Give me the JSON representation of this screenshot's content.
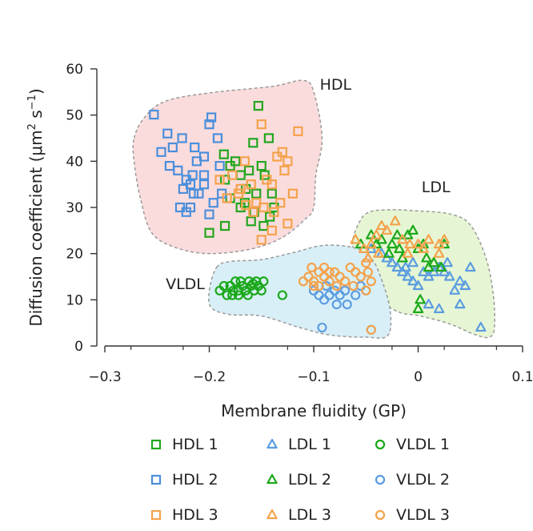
{
  "chart_data": {
    "type": "scatter",
    "xlabel": "Membrane fluidity (GP)",
    "ylabel_main": "Diffusion coefficient (μm",
    "ylabel_sup1": "2",
    "ylabel_mid": " s",
    "ylabel_sup2": "−1",
    "ylabel_end": ")",
    "xlim": [
      -0.3,
      0.1
    ],
    "ylim": [
      0,
      60
    ],
    "xticks": [
      -0.3,
      -0.2,
      -0.1,
      0,
      0.1
    ],
    "xtick_labels": [
      "−0.3",
      "−0.2",
      "−0.1",
      "0",
      "0.1"
    ],
    "yticks": [
      0,
      10,
      20,
      30,
      40,
      50,
      60
    ],
    "ytick_labels": [
      "0",
      "10",
      "20",
      "30",
      "40",
      "50",
      "60"
    ],
    "regions": [
      {
        "name": "HDL",
        "color": "#fbdcdc",
        "polygon": [
          [
            -0.272,
            45
          ],
          [
            -0.262,
            49.5
          ],
          [
            -0.242,
            53
          ],
          [
            -0.2,
            54.8
          ],
          [
            -0.14,
            56.2
          ],
          [
            -0.11,
            57.5
          ],
          [
            -0.1,
            55
          ],
          [
            -0.092,
            45
          ],
          [
            -0.098,
            37
          ],
          [
            -0.1,
            30
          ],
          [
            -0.108,
            27.5
          ],
          [
            -0.13,
            23.5
          ],
          [
            -0.16,
            21
          ],
          [
            -0.2,
            20
          ],
          [
            -0.232,
            21.3
          ],
          [
            -0.255,
            24.5
          ],
          [
            -0.266,
            32
          ],
          [
            -0.272,
            40
          ]
        ],
        "label_x": -0.079,
        "label_y": 55.5
      },
      {
        "name": "LDL",
        "color": "#e6f6d4",
        "polygon": [
          [
            -0.063,
            22
          ],
          [
            -0.057,
            26.5
          ],
          [
            -0.047,
            29
          ],
          [
            -0.025,
            29.5
          ],
          [
            -0.005,
            29.3
          ],
          [
            0.03,
            28.6
          ],
          [
            0.05,
            26.2
          ],
          [
            0.065,
            19
          ],
          [
            0.072,
            11
          ],
          [
            0.073,
            4
          ],
          [
            0.068,
            1.9
          ],
          [
            0.054,
            2.5
          ],
          [
            0.03,
            4.8
          ],
          [
            0.002,
            6.5
          ],
          [
            -0.018,
            7.3
          ],
          [
            -0.036,
            9.8
          ],
          [
            -0.048,
            13.5
          ],
          [
            -0.058,
            17
          ]
        ],
        "label_x": 0.017,
        "label_y": 33.3
      },
      {
        "name": "VLDL",
        "color": "#d8eff8",
        "polygon": [
          [
            -0.193,
            17
          ],
          [
            -0.18,
            18.3
          ],
          [
            -0.15,
            18.7
          ],
          [
            -0.12,
            20.2
          ],
          [
            -0.09,
            21.8
          ],
          [
            -0.06,
            21.2
          ],
          [
            -0.045,
            19
          ],
          [
            -0.036,
            15
          ],
          [
            -0.027,
            8
          ],
          [
            -0.029,
            2.3
          ],
          [
            -0.05,
            1.9
          ],
          [
            -0.085,
            2.4
          ],
          [
            -0.115,
            4.1
          ],
          [
            -0.15,
            6.5
          ],
          [
            -0.18,
            6.8
          ],
          [
            -0.198,
            8.3
          ],
          [
            -0.2,
            12
          ]
        ],
        "label_x": -0.223,
        "label_y": 12.3
      }
    ],
    "series": [
      {
        "name": "HDL 1",
        "marker": "square",
        "color": "#22a61f",
        "points": [
          [
            -0.2,
            24.5
          ],
          [
            -0.185,
            26
          ],
          [
            -0.17,
            30
          ],
          [
            -0.165,
            34
          ],
          [
            -0.162,
            38
          ],
          [
            -0.158,
            44
          ],
          [
            -0.153,
            52
          ],
          [
            -0.15,
            39
          ],
          [
            -0.147,
            37
          ],
          [
            -0.143,
            45
          ],
          [
            -0.14,
            33
          ],
          [
            -0.138,
            30
          ],
          [
            -0.142,
            28
          ],
          [
            -0.16,
            27
          ],
          [
            -0.17,
            37
          ],
          [
            -0.175,
            40
          ],
          [
            -0.18,
            39
          ],
          [
            -0.186,
            41.5
          ],
          [
            -0.185,
            36
          ],
          [
            -0.18,
            32
          ],
          [
            -0.155,
            33
          ],
          [
            -0.148,
            26
          ],
          [
            -0.157,
            29
          ],
          [
            -0.166,
            31
          ]
        ]
      },
      {
        "name": "HDL 2",
        "marker": "square",
        "color": "#4a8fdc",
        "points": [
          [
            -0.253,
            50.1
          ],
          [
            -0.24,
            46
          ],
          [
            -0.235,
            43
          ],
          [
            -0.23,
            38
          ],
          [
            -0.222,
            36
          ],
          [
            -0.218,
            35
          ],
          [
            -0.215,
            33
          ],
          [
            -0.212,
            40
          ],
          [
            -0.205,
            41
          ],
          [
            -0.2,
            48
          ],
          [
            -0.198,
            49.5
          ],
          [
            -0.192,
            45
          ],
          [
            -0.19,
            39
          ],
          [
            -0.188,
            33
          ],
          [
            -0.196,
            31
          ],
          [
            -0.205,
            37
          ],
          [
            -0.225,
            34
          ],
          [
            -0.228,
            30
          ],
          [
            -0.222,
            29
          ],
          [
            -0.218,
            30
          ],
          [
            -0.21,
            33
          ],
          [
            -0.238,
            39
          ],
          [
            -0.246,
            42
          ],
          [
            -0.226,
            45
          ],
          [
            -0.214,
            43
          ],
          [
            -0.2,
            28.5
          ],
          [
            -0.216,
            37
          ],
          [
            -0.205,
            35
          ]
        ]
      },
      {
        "name": "HDL 3",
        "marker": "square",
        "color": "#f4a24c",
        "points": [
          [
            -0.178,
            37
          ],
          [
            -0.17,
            34
          ],
          [
            -0.166,
            40
          ],
          [
            -0.16,
            35
          ],
          [
            -0.155,
            31
          ],
          [
            -0.15,
            48
          ],
          [
            -0.145,
            36
          ],
          [
            -0.14,
            35
          ],
          [
            -0.135,
            41
          ],
          [
            -0.13,
            42
          ],
          [
            -0.128,
            38
          ],
          [
            -0.125,
            40
          ],
          [
            -0.115,
            46.5
          ],
          [
            -0.12,
            33
          ],
          [
            -0.132,
            31
          ],
          [
            -0.138,
            29
          ],
          [
            -0.148,
            30
          ],
          [
            -0.158,
            29
          ],
          [
            -0.165,
            30.5
          ],
          [
            -0.172,
            33
          ],
          [
            -0.183,
            32
          ],
          [
            -0.19,
            36
          ],
          [
            -0.15,
            23
          ],
          [
            -0.14,
            25
          ],
          [
            -0.125,
            26.5
          ]
        ]
      },
      {
        "name": "LDL 1",
        "marker": "triangle",
        "color": "#5b9ce0",
        "points": [
          [
            -0.045,
            21
          ],
          [
            -0.035,
            20
          ],
          [
            -0.025,
            18
          ],
          [
            -0.02,
            17
          ],
          [
            -0.015,
            16
          ],
          [
            -0.01,
            15
          ],
          [
            -0.005,
            14
          ],
          [
            0,
            13
          ],
          [
            0.005,
            16
          ],
          [
            0.01,
            15
          ],
          [
            0.015,
            16
          ],
          [
            0.02,
            17
          ],
          [
            0.025,
            16
          ],
          [
            0.03,
            15
          ],
          [
            0.04,
            14
          ],
          [
            0.05,
            17
          ],
          [
            0.045,
            13
          ],
          [
            0.035,
            12
          ],
          [
            0.06,
            4
          ],
          [
            0.04,
            9
          ],
          [
            0.02,
            8
          ],
          [
            0.01,
            9
          ],
          [
            -0.005,
            18
          ],
          [
            -0.03,
            19
          ],
          [
            -0.012,
            17
          ],
          [
            0.028,
            18
          ]
        ]
      },
      {
        "name": "LDL 2",
        "marker": "triangle",
        "color": "#1aa81a",
        "points": [
          [
            -0.055,
            22
          ],
          [
            -0.045,
            24
          ],
          [
            -0.035,
            23
          ],
          [
            -0.025,
            22
          ],
          [
            -0.018,
            21
          ],
          [
            -0.01,
            24
          ],
          [
            -0.005,
            25
          ],
          [
            0,
            21
          ],
          [
            0.008,
            19
          ],
          [
            0.015,
            18
          ],
          [
            0.022,
            17
          ],
          [
            -0.028,
            20
          ],
          [
            -0.015,
            19
          ],
          [
            -0.04,
            22
          ],
          [
            0.005,
            22
          ],
          [
            0.025,
            22
          ],
          [
            0.01,
            17
          ],
          [
            0,
            8
          ],
          [
            0.002,
            10
          ],
          [
            -0.02,
            24
          ]
        ]
      },
      {
        "name": "LDL 3",
        "marker": "triangle",
        "color": "#f4a24c",
        "points": [
          [
            -0.06,
            23
          ],
          [
            -0.052,
            21
          ],
          [
            -0.045,
            22
          ],
          [
            -0.04,
            24
          ],
          [
            -0.035,
            26
          ],
          [
            -0.03,
            25
          ],
          [
            -0.022,
            27
          ],
          [
            -0.015,
            23
          ],
          [
            -0.008,
            22
          ],
          [
            0,
            22
          ],
          [
            0.01,
            23
          ],
          [
            0.02,
            22
          ],
          [
            0.025,
            23
          ],
          [
            0.02,
            20
          ],
          [
            -0.048,
            19
          ],
          [
            -0.038,
            20
          ],
          [
            -0.01,
            20
          ],
          [
            0.005,
            21
          ]
        ]
      },
      {
        "name": "VLDL 1",
        "marker": "circle",
        "color": "#1aa81a",
        "points": [
          [
            -0.19,
            12
          ],
          [
            -0.186,
            13
          ],
          [
            -0.183,
            11
          ],
          [
            -0.18,
            13
          ],
          [
            -0.177,
            12
          ],
          [
            -0.175,
            14
          ],
          [
            -0.172,
            12
          ],
          [
            -0.17,
            14
          ],
          [
            -0.168,
            13
          ],
          [
            -0.165,
            12
          ],
          [
            -0.162,
            14
          ],
          [
            -0.16,
            13
          ],
          [
            -0.157,
            12
          ],
          [
            -0.155,
            14
          ],
          [
            -0.153,
            13
          ],
          [
            -0.15,
            12
          ],
          [
            -0.148,
            14
          ],
          [
            -0.178,
            11
          ],
          [
            -0.172,
            11
          ],
          [
            -0.163,
            11
          ],
          [
            -0.158,
            13.5
          ],
          [
            -0.13,
            11
          ]
        ]
      },
      {
        "name": "VLDL 2",
        "marker": "circle",
        "color": "#5b9ce0",
        "points": [
          [
            -0.1,
            12
          ],
          [
            -0.095,
            11
          ],
          [
            -0.09,
            10
          ],
          [
            -0.085,
            11
          ],
          [
            -0.08,
            12
          ],
          [
            -0.075,
            11
          ],
          [
            -0.07,
            12
          ],
          [
            -0.068,
            9
          ],
          [
            -0.06,
            11
          ],
          [
            -0.055,
            13
          ],
          [
            -0.05,
            12
          ],
          [
            -0.092,
            4
          ],
          [
            -0.045,
            3.5
          ],
          [
            -0.078,
            9
          ],
          [
            -0.088,
            13
          ]
        ]
      },
      {
        "name": "VLDL 3",
        "marker": "circle",
        "color": "#f4a24c",
        "points": [
          [
            -0.11,
            14
          ],
          [
            -0.105,
            15
          ],
          [
            -0.1,
            14
          ],
          [
            -0.095,
            16
          ],
          [
            -0.09,
            15
          ],
          [
            -0.085,
            14
          ],
          [
            -0.08,
            16
          ],
          [
            -0.075,
            15
          ],
          [
            -0.07,
            14
          ],
          [
            -0.065,
            17
          ],
          [
            -0.06,
            16
          ],
          [
            -0.055,
            15
          ],
          [
            -0.05,
            18
          ],
          [
            -0.048,
            16
          ],
          [
            -0.05,
            12
          ],
          [
            -0.045,
            14
          ],
          [
            -0.09,
            17
          ],
          [
            -0.1,
            13
          ],
          [
            -0.085,
            16
          ],
          [
            -0.078,
            13
          ],
          [
            -0.102,
            17
          ],
          [
            -0.062,
            13
          ],
          [
            -0.045,
            3.5
          ],
          [
            -0.095,
            13
          ]
        ]
      }
    ],
    "legend": [
      {
        "label": "HDL 1",
        "marker": "square",
        "color": "#22a61f"
      },
      {
        "label": "LDL 1",
        "marker": "triangle",
        "color": "#5b9ce0"
      },
      {
        "label": "VLDL 1",
        "marker": "circle",
        "color": "#1aa81a"
      },
      {
        "label": "HDL 2",
        "marker": "square",
        "color": "#4a8fdc"
      },
      {
        "label": "LDL 2",
        "marker": "triangle",
        "color": "#1aa81a"
      },
      {
        "label": "VLDL 2",
        "marker": "circle",
        "color": "#5b9ce0"
      },
      {
        "label": "HDL 3",
        "marker": "square",
        "color": "#f4a24c"
      },
      {
        "label": "LDL 3",
        "marker": "triangle",
        "color": "#f4a24c"
      },
      {
        "label": "VLDL 3",
        "marker": "circle",
        "color": "#f4a24c"
      }
    ]
  }
}
